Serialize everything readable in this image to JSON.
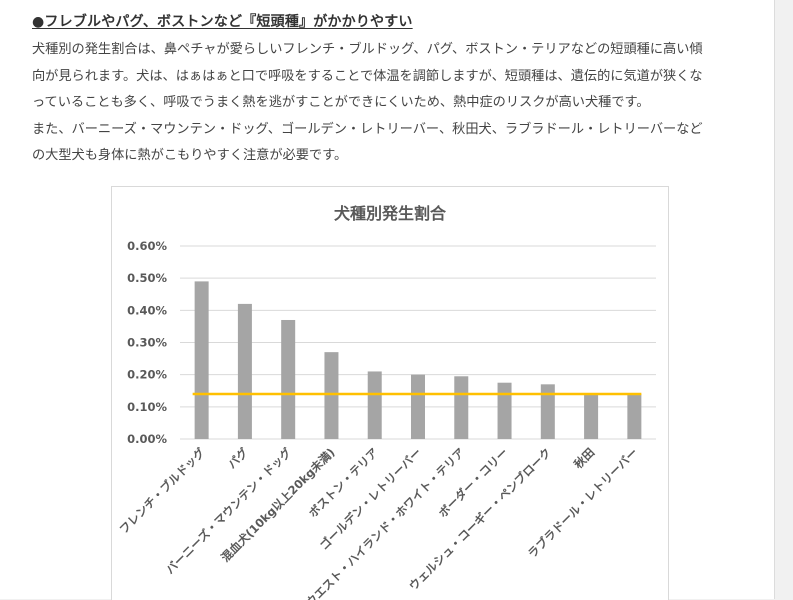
{
  "article": {
    "heading": "●フレブルやパグ、ボストンなど『短頭種』がかかりやすい",
    "paragraph_lines": [
      "犬種別の発生割合は、鼻ペチャが愛らしいフレンチ・ブルドッグ、パグ、ボストン・テリアなどの短頭種に高い傾",
      "向が見られます。犬は、はぁはぁと口で呼吸をすることで体温を調節しますが、短頭種は、遺伝的に気道が狭くな",
      "っていることも多く、呼吸でうまく熱を逃がすことができにくいため、熱中症のリスクが高い犬種です。",
      "また、バーニーズ・マウンテン・ドッグ、ゴールデン・レトリーバー、秋田犬、ラブラドール・レトリーバーなど",
      "の大型犬も身体に熱がこもりやすく注意が必要です。"
    ]
  },
  "chart_data": {
    "type": "bar",
    "title": "犬種別発生割合",
    "categories": [
      "フレンチ・ブルドッグ",
      "パグ",
      "バーニーズ・マウンテン・ドッグ",
      "混血犬(10kg以上20kg未満)",
      "ボストン・テリア",
      "ゴールデン・レトリーバー",
      "ウエスト・ハイランド・ホワイト・テリア",
      "ボーダー・コリー",
      "ウェルシュ・コーギー・ペンブローク",
      "秋田",
      "ラブラドール・レトリーバー"
    ],
    "values": [
      0.49,
      0.42,
      0.37,
      0.27,
      0.21,
      0.2,
      0.195,
      0.175,
      0.17,
      0.14,
      0.14
    ],
    "average_line": 0.14,
    "y_ticks": [
      "0.00%",
      "0.10%",
      "0.20%",
      "0.30%",
      "0.40%",
      "0.50%",
      "0.60%"
    ],
    "ylim": [
      0,
      0.6
    ],
    "xlabel": "",
    "ylabel": "",
    "grid": true,
    "colors": {
      "bar": "#a5a5a5",
      "line": "#ffc000",
      "grid": "#d9d9d9",
      "text": "#595959"
    }
  }
}
